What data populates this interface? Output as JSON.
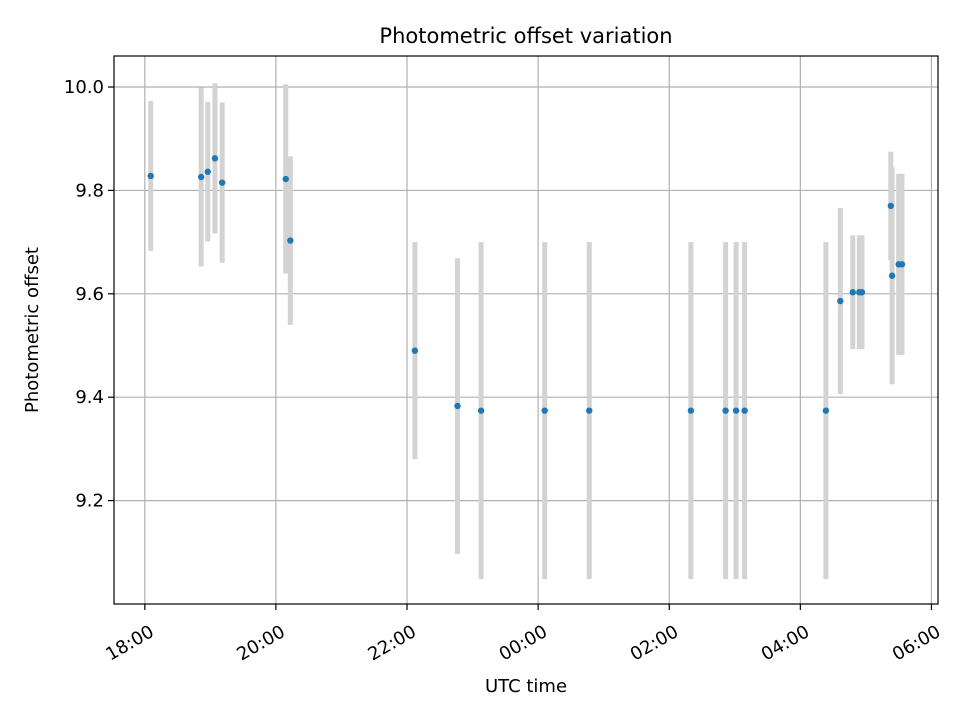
{
  "chart_data": {
    "type": "scatter",
    "title": "Photometric offset variation",
    "xlabel": "UTC time",
    "ylabel": "Photometric offset",
    "grid": true,
    "x_unit": "hours after 18:00 UTC",
    "xlim": [
      -0.47,
      12.1
    ],
    "ylim": [
      9.0,
      10.06
    ],
    "x_ticks": [
      {
        "value": 0,
        "label": "18:00"
      },
      {
        "value": 2,
        "label": "20:00"
      },
      {
        "value": 4,
        "label": "22:00"
      },
      {
        "value": 6,
        "label": "00:00"
      },
      {
        "value": 8,
        "label": "02:00"
      },
      {
        "value": 10,
        "label": "04:00"
      },
      {
        "value": 12,
        "label": "06:00"
      }
    ],
    "y_ticks": [
      {
        "value": 9.2,
        "label": "9.2"
      },
      {
        "value": 9.4,
        "label": "9.4"
      },
      {
        "value": 9.6,
        "label": "9.6"
      },
      {
        "value": 9.8,
        "label": "9.8"
      },
      {
        "value": 10.0,
        "label": "10.0"
      }
    ],
    "colors": {
      "point": "#1f77b4",
      "errorbar": "#d3d3d3",
      "grid": "#b0b0b0"
    },
    "points": [
      {
        "x": 0.09,
        "y": 9.828,
        "err": 0.145
      },
      {
        "x": 0.86,
        "y": 9.826,
        "err": 0.173
      },
      {
        "x": 0.96,
        "y": 9.836,
        "err": 0.135
      },
      {
        "x": 1.07,
        "y": 9.862,
        "err": 0.145
      },
      {
        "x": 1.18,
        "y": 9.815,
        "err": 0.155
      },
      {
        "x": 2.15,
        "y": 9.822,
        "err": 0.183
      },
      {
        "x": 2.22,
        "y": 9.703,
        "err": 0.163
      },
      {
        "x": 4.12,
        "y": 9.49,
        "err": 0.21
      },
      {
        "x": 4.77,
        "y": 9.383,
        "err": 0.286
      },
      {
        "x": 5.13,
        "y": 9.374,
        "err": 0.326
      },
      {
        "x": 6.1,
        "y": 9.374,
        "err": 0.326
      },
      {
        "x": 6.78,
        "y": 9.374,
        "err": 0.326
      },
      {
        "x": 8.33,
        "y": 9.374,
        "err": 0.326
      },
      {
        "x": 8.86,
        "y": 9.374,
        "err": 0.326
      },
      {
        "x": 9.02,
        "y": 9.374,
        "err": 0.326
      },
      {
        "x": 9.15,
        "y": 9.374,
        "err": 0.326
      },
      {
        "x": 10.39,
        "y": 9.374,
        "err": 0.326
      },
      {
        "x": 10.61,
        "y": 9.586,
        "err": 0.18
      },
      {
        "x": 10.8,
        "y": 9.603,
        "err": 0.11
      },
      {
        "x": 10.9,
        "y": 9.603,
        "err": 0.11
      },
      {
        "x": 10.94,
        "y": 9.603,
        "err": 0.11
      },
      {
        "x": 11.38,
        "y": 9.77,
        "err": 0.105
      },
      {
        "x": 11.4,
        "y": 9.635,
        "err": 0.21
      },
      {
        "x": 11.5,
        "y": 9.657,
        "err": 0.175
      },
      {
        "x": 11.55,
        "y": 9.657,
        "err": 0.175
      }
    ]
  }
}
